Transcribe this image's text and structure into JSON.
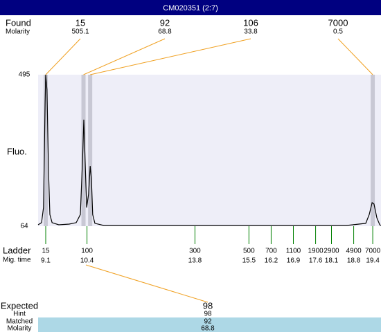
{
  "chart_data": {
    "type": "line",
    "title": "CM020351 (2:7)",
    "y_label": "Fluo.",
    "color": "#000000",
    "background": "#eeeef8",
    "x": [
      8.86,
      8.97,
      9.03,
      9.08,
      9.1,
      9.14,
      9.19,
      9.23,
      9.3,
      9.51,
      9.84,
      10.06,
      10.19,
      10.26,
      10.3,
      10.34,
      10.39,
      10.45,
      10.5,
      10.54,
      10.58,
      10.65,
      10.93,
      14.21,
      18.57,
      19.18,
      19.29,
      19.38,
      19.44,
      19.53,
      19.62,
      19.66
    ],
    "values": [
      68,
      74,
      117,
      412,
      495,
      452,
      216,
      97,
      74,
      68,
      70,
      74,
      97,
      255,
      367,
      255,
      117,
      156,
      235,
      196,
      97,
      72,
      66,
      66,
      66,
      72,
      97,
      131,
      127,
      88,
      68,
      66
    ],
    "xlim": [
      8.86,
      19.66
    ],
    "ylim": [
      64,
      495
    ],
    "yticks": [
      64,
      495
    ],
    "found": {
      "label": "Found",
      "sub_label": "Molarity",
      "sizes": [
        15,
        92,
        106,
        7000
      ],
      "molarity": [
        505.1,
        68.8,
        33.8,
        0.5
      ],
      "times": [
        9.1,
        10.29,
        10.5,
        19.4
      ]
    },
    "ladder": {
      "label": "Ladder",
      "sub_label": "Mig. time",
      "color": "#008000",
      "sizes": [
        15,
        100,
        300,
        500,
        700,
        1100,
        1900,
        2900,
        4900,
        7000
      ],
      "times": [
        9.1,
        10.4,
        13.8,
        15.5,
        16.2,
        16.9,
        17.6,
        18.1,
        18.8,
        19.4
      ]
    },
    "expected": {
      "label": "Expected",
      "value": 98,
      "hint_label": "Hint",
      "hint": 98,
      "matched_label": "Matched",
      "matched": 92,
      "molarity_label": "Molarity",
      "molarity": 68.8
    }
  }
}
